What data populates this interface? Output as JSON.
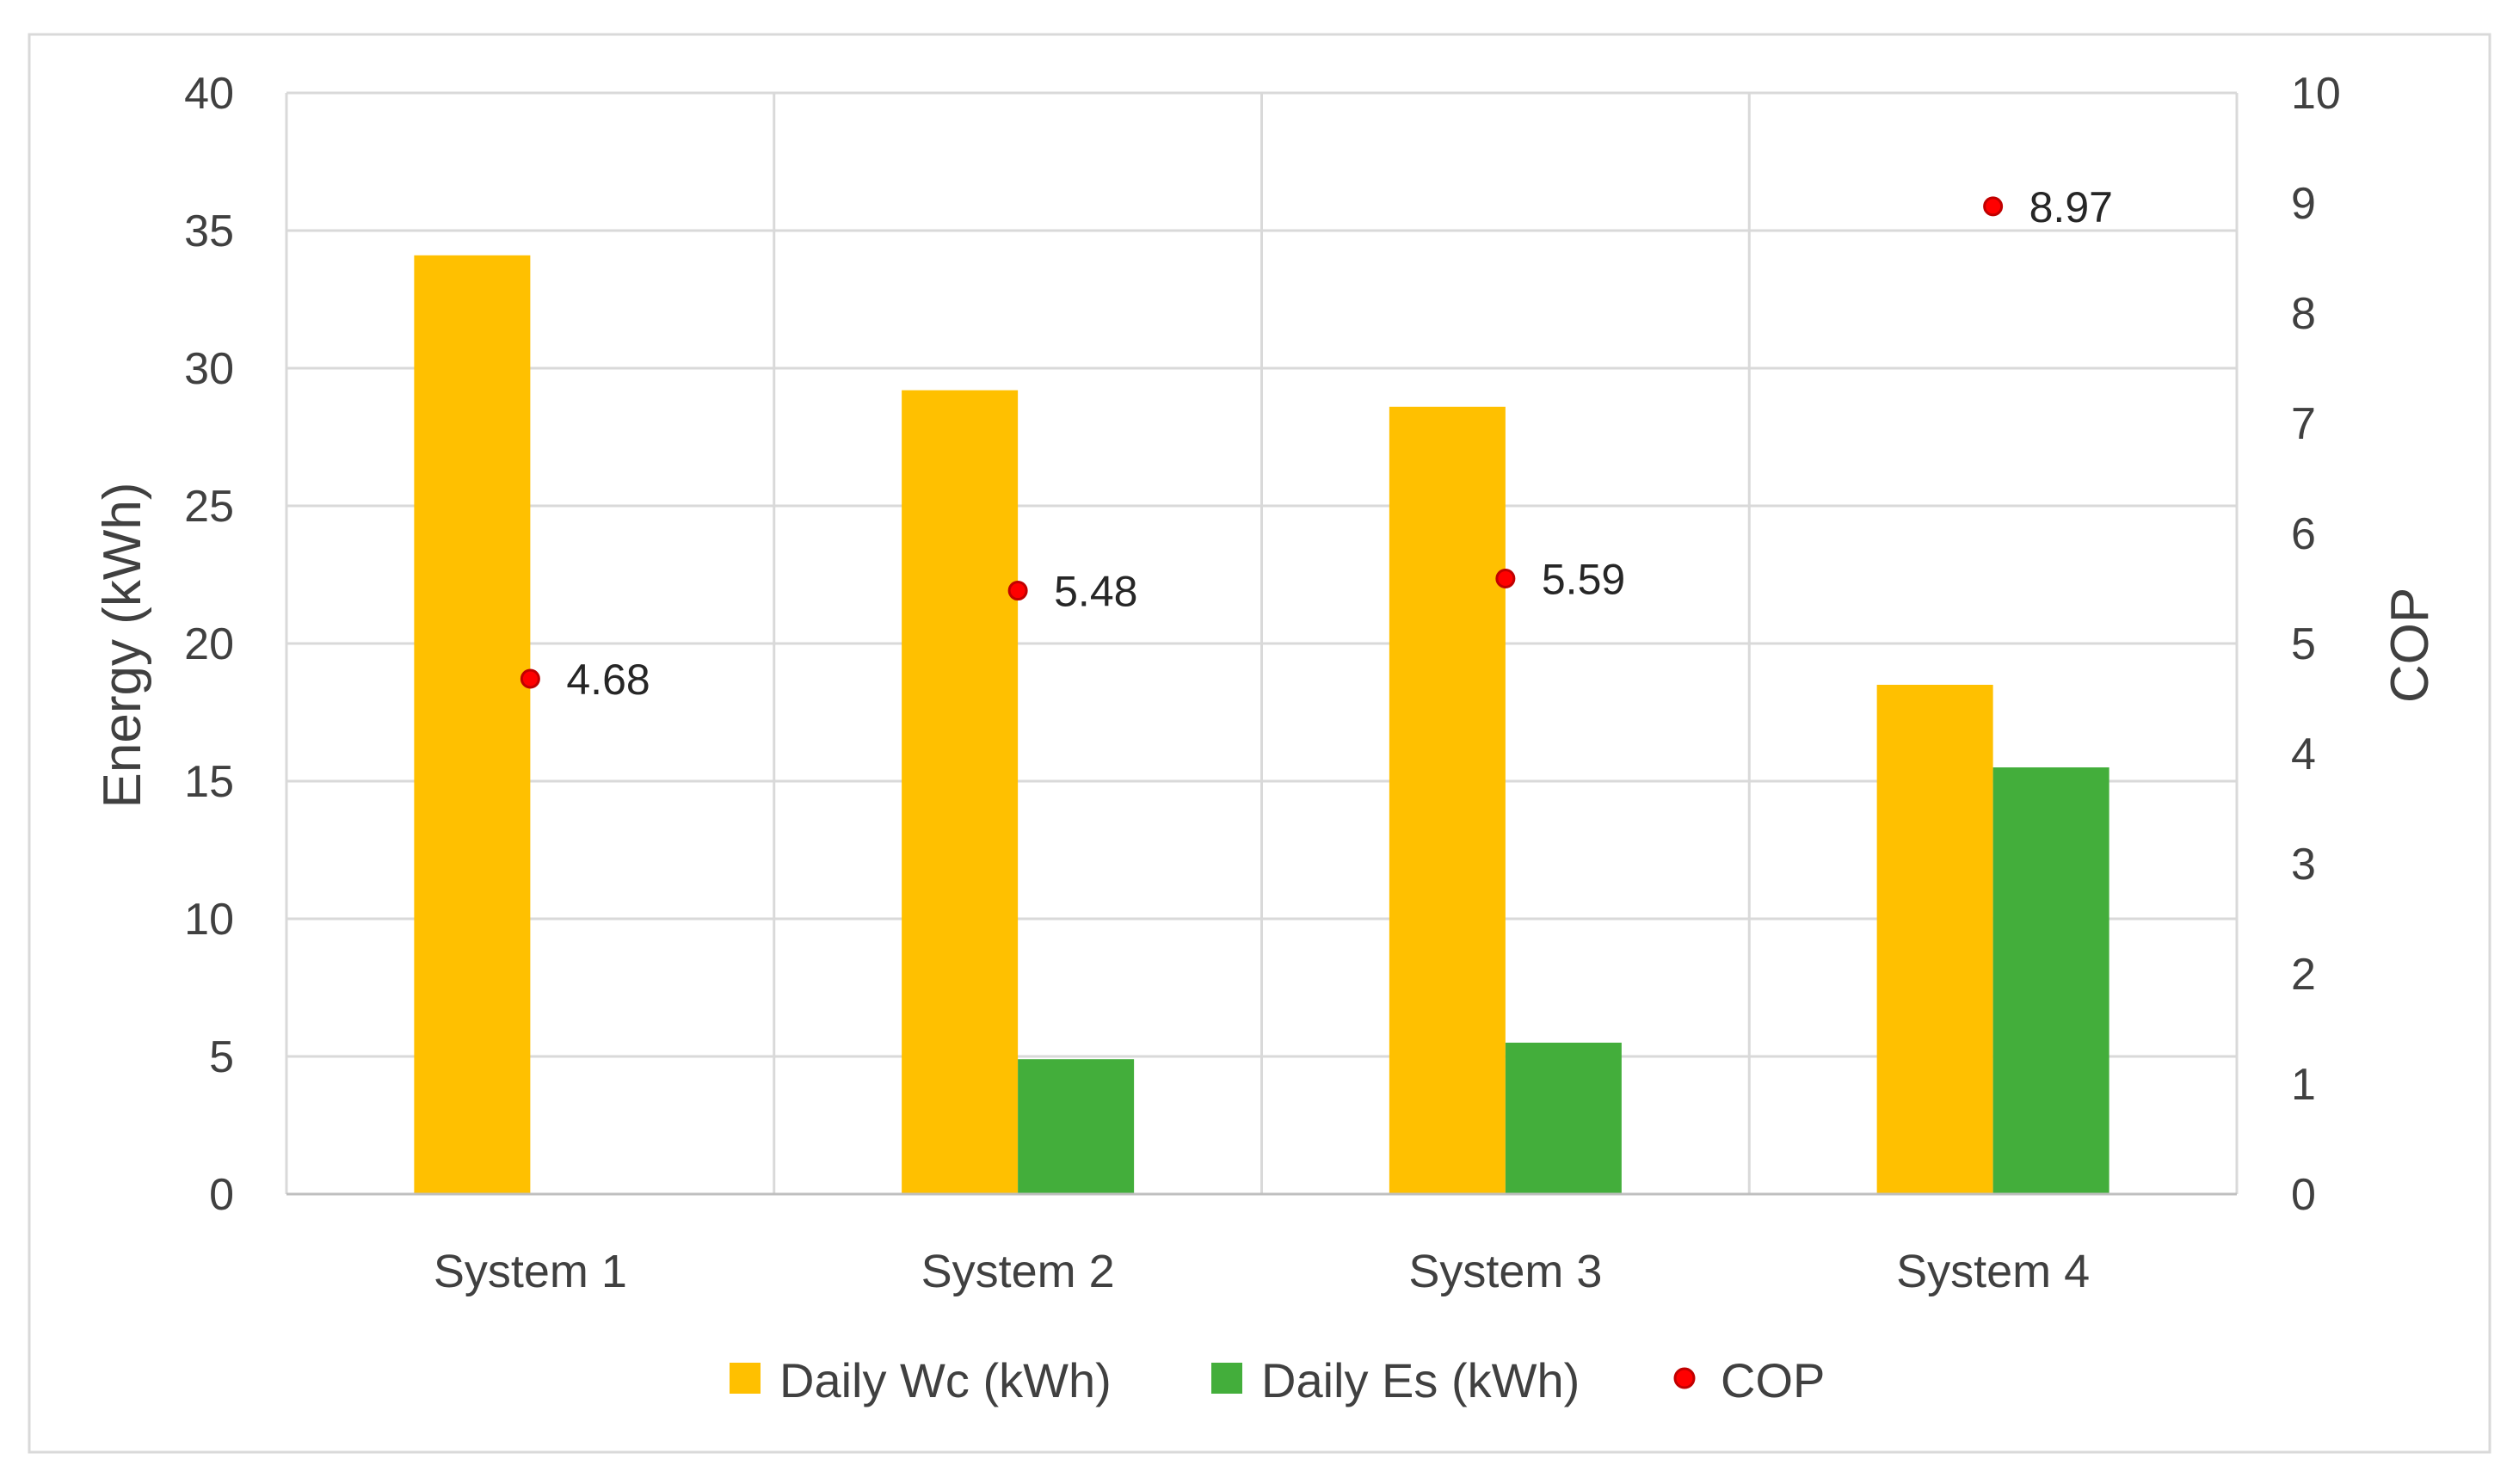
{
  "chart_data": {
    "type": "bar",
    "categories": [
      "System 1",
      "System 2",
      "System 3",
      "System 4"
    ],
    "series": [
      {
        "name": "Daily Wc (kWh)",
        "axis": "left",
        "kind": "bar",
        "color": "#FFC000",
        "values": [
          34.1,
          29.2,
          28.6,
          18.5
        ]
      },
      {
        "name": "Daily Es (kWh)",
        "axis": "left",
        "kind": "bar",
        "color": "#43AE3B",
        "values": [
          0,
          4.9,
          5.5,
          15.5
        ]
      },
      {
        "name": "COP",
        "axis": "right",
        "kind": "scatter",
        "color": "#FF0000",
        "values": [
          4.68,
          5.48,
          5.59,
          8.97
        ],
        "labels": [
          "4.68",
          "5.48",
          "5.59",
          "8.97"
        ]
      }
    ],
    "ylabel": "Energy (kWh)",
    "ylim": [
      0,
      40
    ],
    "yticks": [
      "0",
      "5",
      "10",
      "15",
      "20",
      "25",
      "30",
      "35",
      "40"
    ],
    "y2label": "COP",
    "y2lim": [
      0,
      10
    ],
    "y2ticks": [
      "0",
      "1",
      "2",
      "3",
      "4",
      "5",
      "6",
      "7",
      "8",
      "9",
      "10"
    ],
    "grid": true,
    "legend_position": "bottom"
  }
}
